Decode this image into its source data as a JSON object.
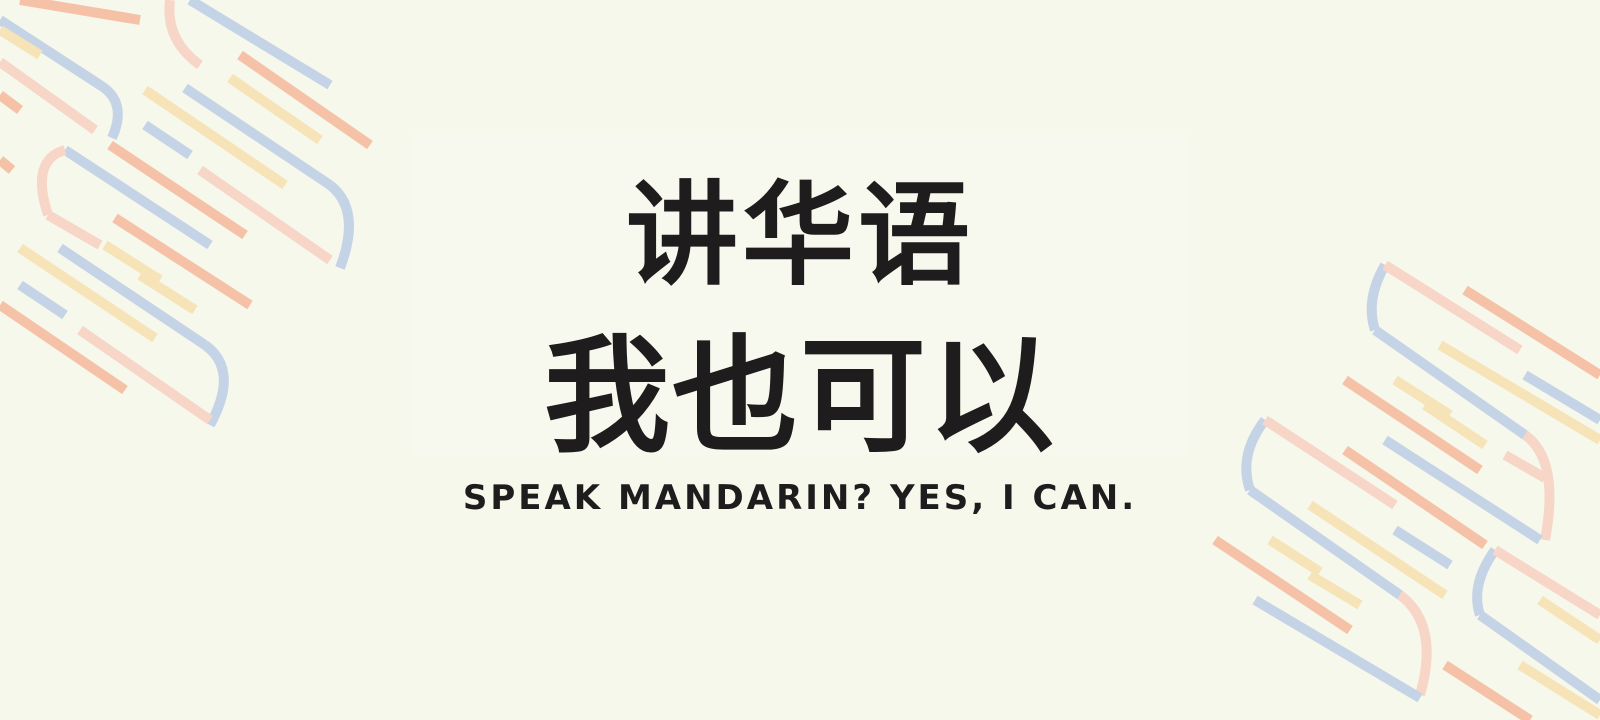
{
  "banner": {
    "title_line_1": "讲华语",
    "title_line_2": "我也可以",
    "subtitle": "SPEAK MANDARIN? YES, I CAN."
  },
  "colors": {
    "background": "#f7f8ec",
    "text": "#1e1c1c",
    "stripe_blue": "#c5d3e6",
    "stripe_orange": "#f5c2a8",
    "stripe_yellow": "#f6e3b8",
    "stripe_pink": "#f7d6c8"
  }
}
